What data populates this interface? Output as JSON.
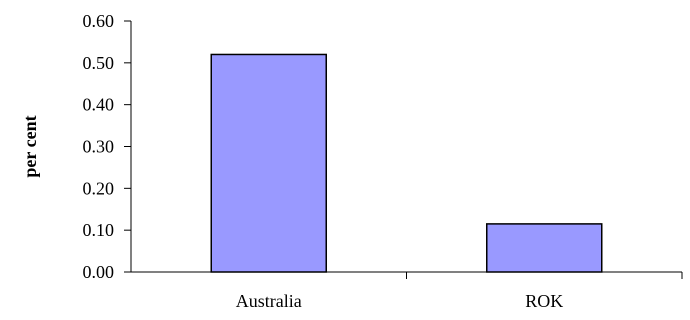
{
  "chart_data": {
    "type": "bar",
    "categories": [
      "Australia",
      "ROK"
    ],
    "values": [
      0.52,
      0.115
    ],
    "title": "",
    "xlabel": "",
    "ylabel": "per cent",
    "ylim": [
      0,
      0.6
    ],
    "yticks": [
      "0.00",
      "0.10",
      "0.20",
      "0.30",
      "0.40",
      "0.50",
      "0.60"
    ],
    "grid": false,
    "legend": "none",
    "colors": {
      "bar_fill": "#9999FF",
      "bar_stroke": "#000000",
      "axis": "#000000"
    }
  }
}
